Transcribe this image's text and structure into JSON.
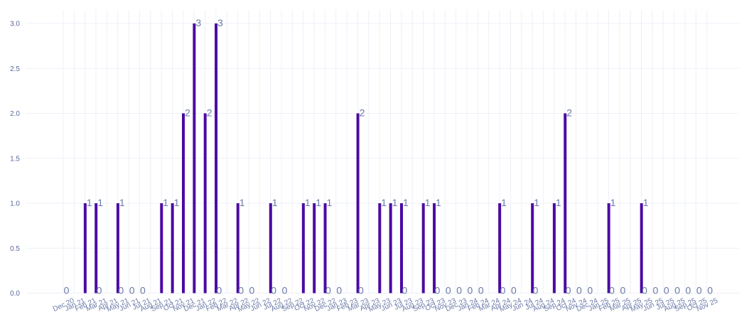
{
  "colors": {
    "bar": "#4b0aa3",
    "grid": "#eef0f8",
    "text": "#6a79a8"
  },
  "chart_data": {
    "type": "bar",
    "title": "",
    "xlabel": "",
    "ylabel": "",
    "ylim": [
      0,
      3.15
    ],
    "yticks": [
      "0.0",
      "0.5",
      "1.0",
      "1.5",
      "2.0",
      "2.5",
      "3.0"
    ],
    "grid": true,
    "categories": [
      "Dec 20",
      "Jan 21",
      "Feb 21",
      "Mar 21",
      "Apr 21",
      "May 21",
      "Jun 21",
      "Jul 21",
      "Aug 21",
      "Sep 21",
      "Oct 21",
      "Nov 21",
      "Dec 21",
      "Jan 22",
      "Feb 22",
      "Mar 22",
      "Apr 22",
      "May 22",
      "Jun 22",
      "Jul 22",
      "Aug 22",
      "Sep 22",
      "Oct 22",
      "Nov 22",
      "Dec 22",
      "Jan 23",
      "Feb 23",
      "Mar 23",
      "Apr 23",
      "May 23",
      "Jun 23",
      "Jul 23",
      "Aug 23",
      "Sep 23",
      "Oct 23",
      "Nov 23",
      "Dec 23",
      "Jan 24",
      "Feb 24",
      "Mar 24",
      "Apr 24",
      "May 24",
      "Jun 24",
      "Jul 24",
      "Aug 24",
      "Sep 24",
      "Oct 24",
      "Nov 24",
      "Dec 24",
      "Jan 25",
      "Feb 25",
      "Mar 25",
      "Apr 25",
      "May 25",
      "Jun 25",
      "Jul 25",
      "Aug 25",
      "Sep 25",
      "Oct 25",
      "Nov 25"
    ],
    "values": [
      0,
      1,
      1,
      0,
      1,
      0,
      0,
      0,
      1,
      1,
      2,
      3,
      2,
      3,
      0,
      1,
      0,
      0,
      1,
      0,
      0,
      1,
      1,
      1,
      0,
      0,
      2,
      0,
      1,
      1,
      1,
      0,
      1,
      1,
      0,
      0,
      0,
      0,
      0,
      1,
      0,
      0,
      1,
      0,
      1,
      2,
      0,
      0,
      0,
      1,
      0,
      0,
      1,
      0,
      0,
      0,
      0,
      0,
      0,
      0
    ],
    "data_labels": [
      "0",
      "1",
      "1",
      "0",
      "1",
      "0",
      "0",
      "0",
      "1",
      "1",
      "2",
      "3",
      "2",
      "3",
      "0",
      "1",
      "0",
      "0",
      "1",
      "0",
      "0",
      "1",
      "1",
      "1",
      "0",
      "0",
      "2",
      "0",
      "1",
      "1",
      "1",
      "0",
      "1",
      "1",
      "0",
      "0",
      "0",
      "0",
      "0",
      "1",
      "0",
      "0",
      "1",
      "0",
      "1",
      "2",
      "0",
      "0",
      "0",
      "1",
      "0",
      "0",
      "1",
      "0",
      "0",
      "0",
      "0",
      "0",
      "0",
      "0"
    ]
  }
}
